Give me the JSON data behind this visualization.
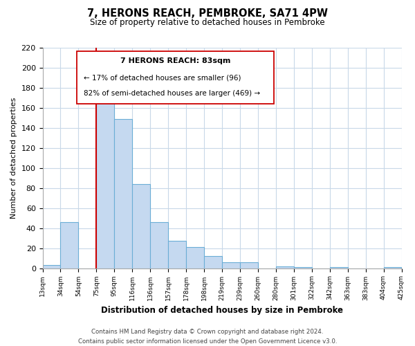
{
  "title": "7, HERONS REACH, PEMBROKE, SA71 4PW",
  "subtitle": "Size of property relative to detached houses in Pembroke",
  "xlabel": "Distribution of detached houses by size in Pembroke",
  "ylabel": "Number of detached properties",
  "bar_labels": [
    "13sqm",
    "34sqm",
    "54sqm",
    "75sqm",
    "95sqm",
    "116sqm",
    "136sqm",
    "157sqm",
    "178sqm",
    "198sqm",
    "219sqm",
    "239sqm",
    "260sqm",
    "280sqm",
    "301sqm",
    "322sqm",
    "342sqm",
    "363sqm",
    "383sqm",
    "404sqm",
    "425sqm"
  ],
  "bar_values": [
    3,
    46,
    0,
    169,
    149,
    84,
    46,
    27,
    21,
    12,
    6,
    6,
    0,
    2,
    1,
    0,
    1,
    0,
    0,
    1
  ],
  "bar_color": "#c5d9f0",
  "bar_edge_color": "#6baed6",
  "vline_color": "#cc0000",
  "ylim": [
    0,
    220
  ],
  "yticks": [
    0,
    20,
    40,
    60,
    80,
    100,
    120,
    140,
    160,
    180,
    200,
    220
  ],
  "annotation_title": "7 HERONS REACH: 83sqm",
  "annotation_line1": "← 17% of detached houses are smaller (96)",
  "annotation_line2": "82% of semi-detached houses are larger (469) →",
  "footer1": "Contains HM Land Registry data © Crown copyright and database right 2024.",
  "footer2": "Contains public sector information licensed under the Open Government Licence v3.0.",
  "background_color": "#ffffff",
  "grid_color": "#c8d8e8"
}
